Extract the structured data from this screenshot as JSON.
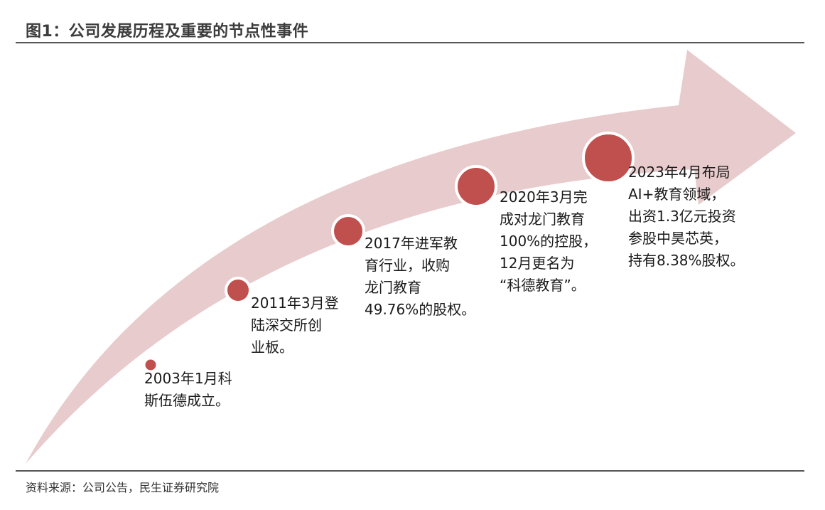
{
  "title": "图1：公司发展历程及重要的节点性事件",
  "colors": {
    "arrow": "#e8cbcd",
    "node": "#c0504d",
    "node_ring": "#ffffff",
    "rule": "#555555"
  },
  "events": [
    {
      "lines": [
        "2003年1月科",
        "斯伍德成立。"
      ]
    },
    {
      "lines": [
        "2011年3月登",
        "陆深交所创",
        "业板。"
      ]
    },
    {
      "lines": [
        "2017年进军教",
        "育行业，收购",
        "龙门教育",
        "49.76%的股权。"
      ]
    },
    {
      "lines": [
        "2020年3月完",
        "成对龙门教育",
        "100%的控股，",
        "12月更名为",
        " “科德教育”。"
      ]
    },
    {
      "lines": [
        "2023年4月布局",
        "AI+教育领域，",
        "出资1.3亿元投资",
        "参股中昊芯英，",
        "持有8.38%股权。"
      ]
    }
  ],
  "source": "资料来源：公司公告，民生证券研究院"
}
